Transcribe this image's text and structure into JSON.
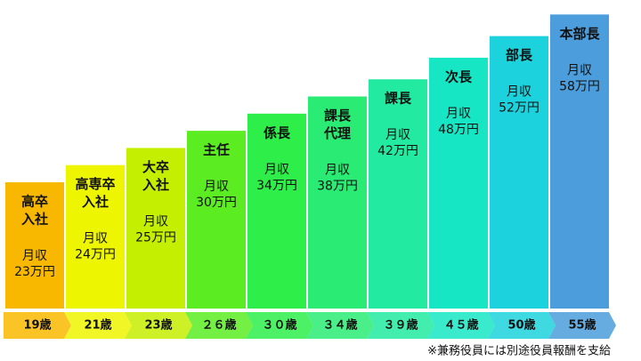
{
  "steps": [
    {
      "title_lines": [
        "高卒",
        "入社"
      ],
      "pay_label": "月収",
      "pay": "23万円",
      "age": "19歳",
      "color": "#f9b800"
    },
    {
      "title_lines": [
        "高専卒",
        "入社"
      ],
      "pay_label": "月収",
      "pay": "24万円",
      "age": "21歳",
      "color": "#eef500"
    },
    {
      "title_lines": [
        "大卒",
        "入社"
      ],
      "pay_label": "月収",
      "pay": "25万円",
      "age": "23歳",
      "color": "#c4ef00"
    },
    {
      "title_lines": [
        "主任"
      ],
      "pay_label": "月収",
      "pay": "30万円",
      "age": "２６歳",
      "color": "#5cec22"
    },
    {
      "title_lines": [
        "係長"
      ],
      "pay_label": "月収",
      "pay": "34万円",
      "age": "３０歳",
      "color": "#2eee4a"
    },
    {
      "title_lines": [
        "課長",
        "代理"
      ],
      "pay_label": "月収",
      "pay": "38万円",
      "age": "３４歳",
      "color": "#2aec74"
    },
    {
      "title_lines": [
        "課長"
      ],
      "pay_label": "月収",
      "pay": "42万円",
      "age": "３９歳",
      "color": "#22eaa0"
    },
    {
      "title_lines": [
        "次長"
      ],
      "pay_label": "月収",
      "pay": "48万円",
      "age": "４５歳",
      "color": "#16e6c4"
    },
    {
      "title_lines": [
        "部長"
      ],
      "pay_label": "月収",
      "pay": "52万円",
      "age": "50歳",
      "color": "#1cd2dc"
    },
    {
      "title_lines": [
        "本部長"
      ],
      "pay_label": "月収",
      "pay": "58万円",
      "age": "55歳",
      "color": "#4b9ddb"
    }
  ],
  "footnote": "※兼務役員には別途役員報酬を支給"
}
